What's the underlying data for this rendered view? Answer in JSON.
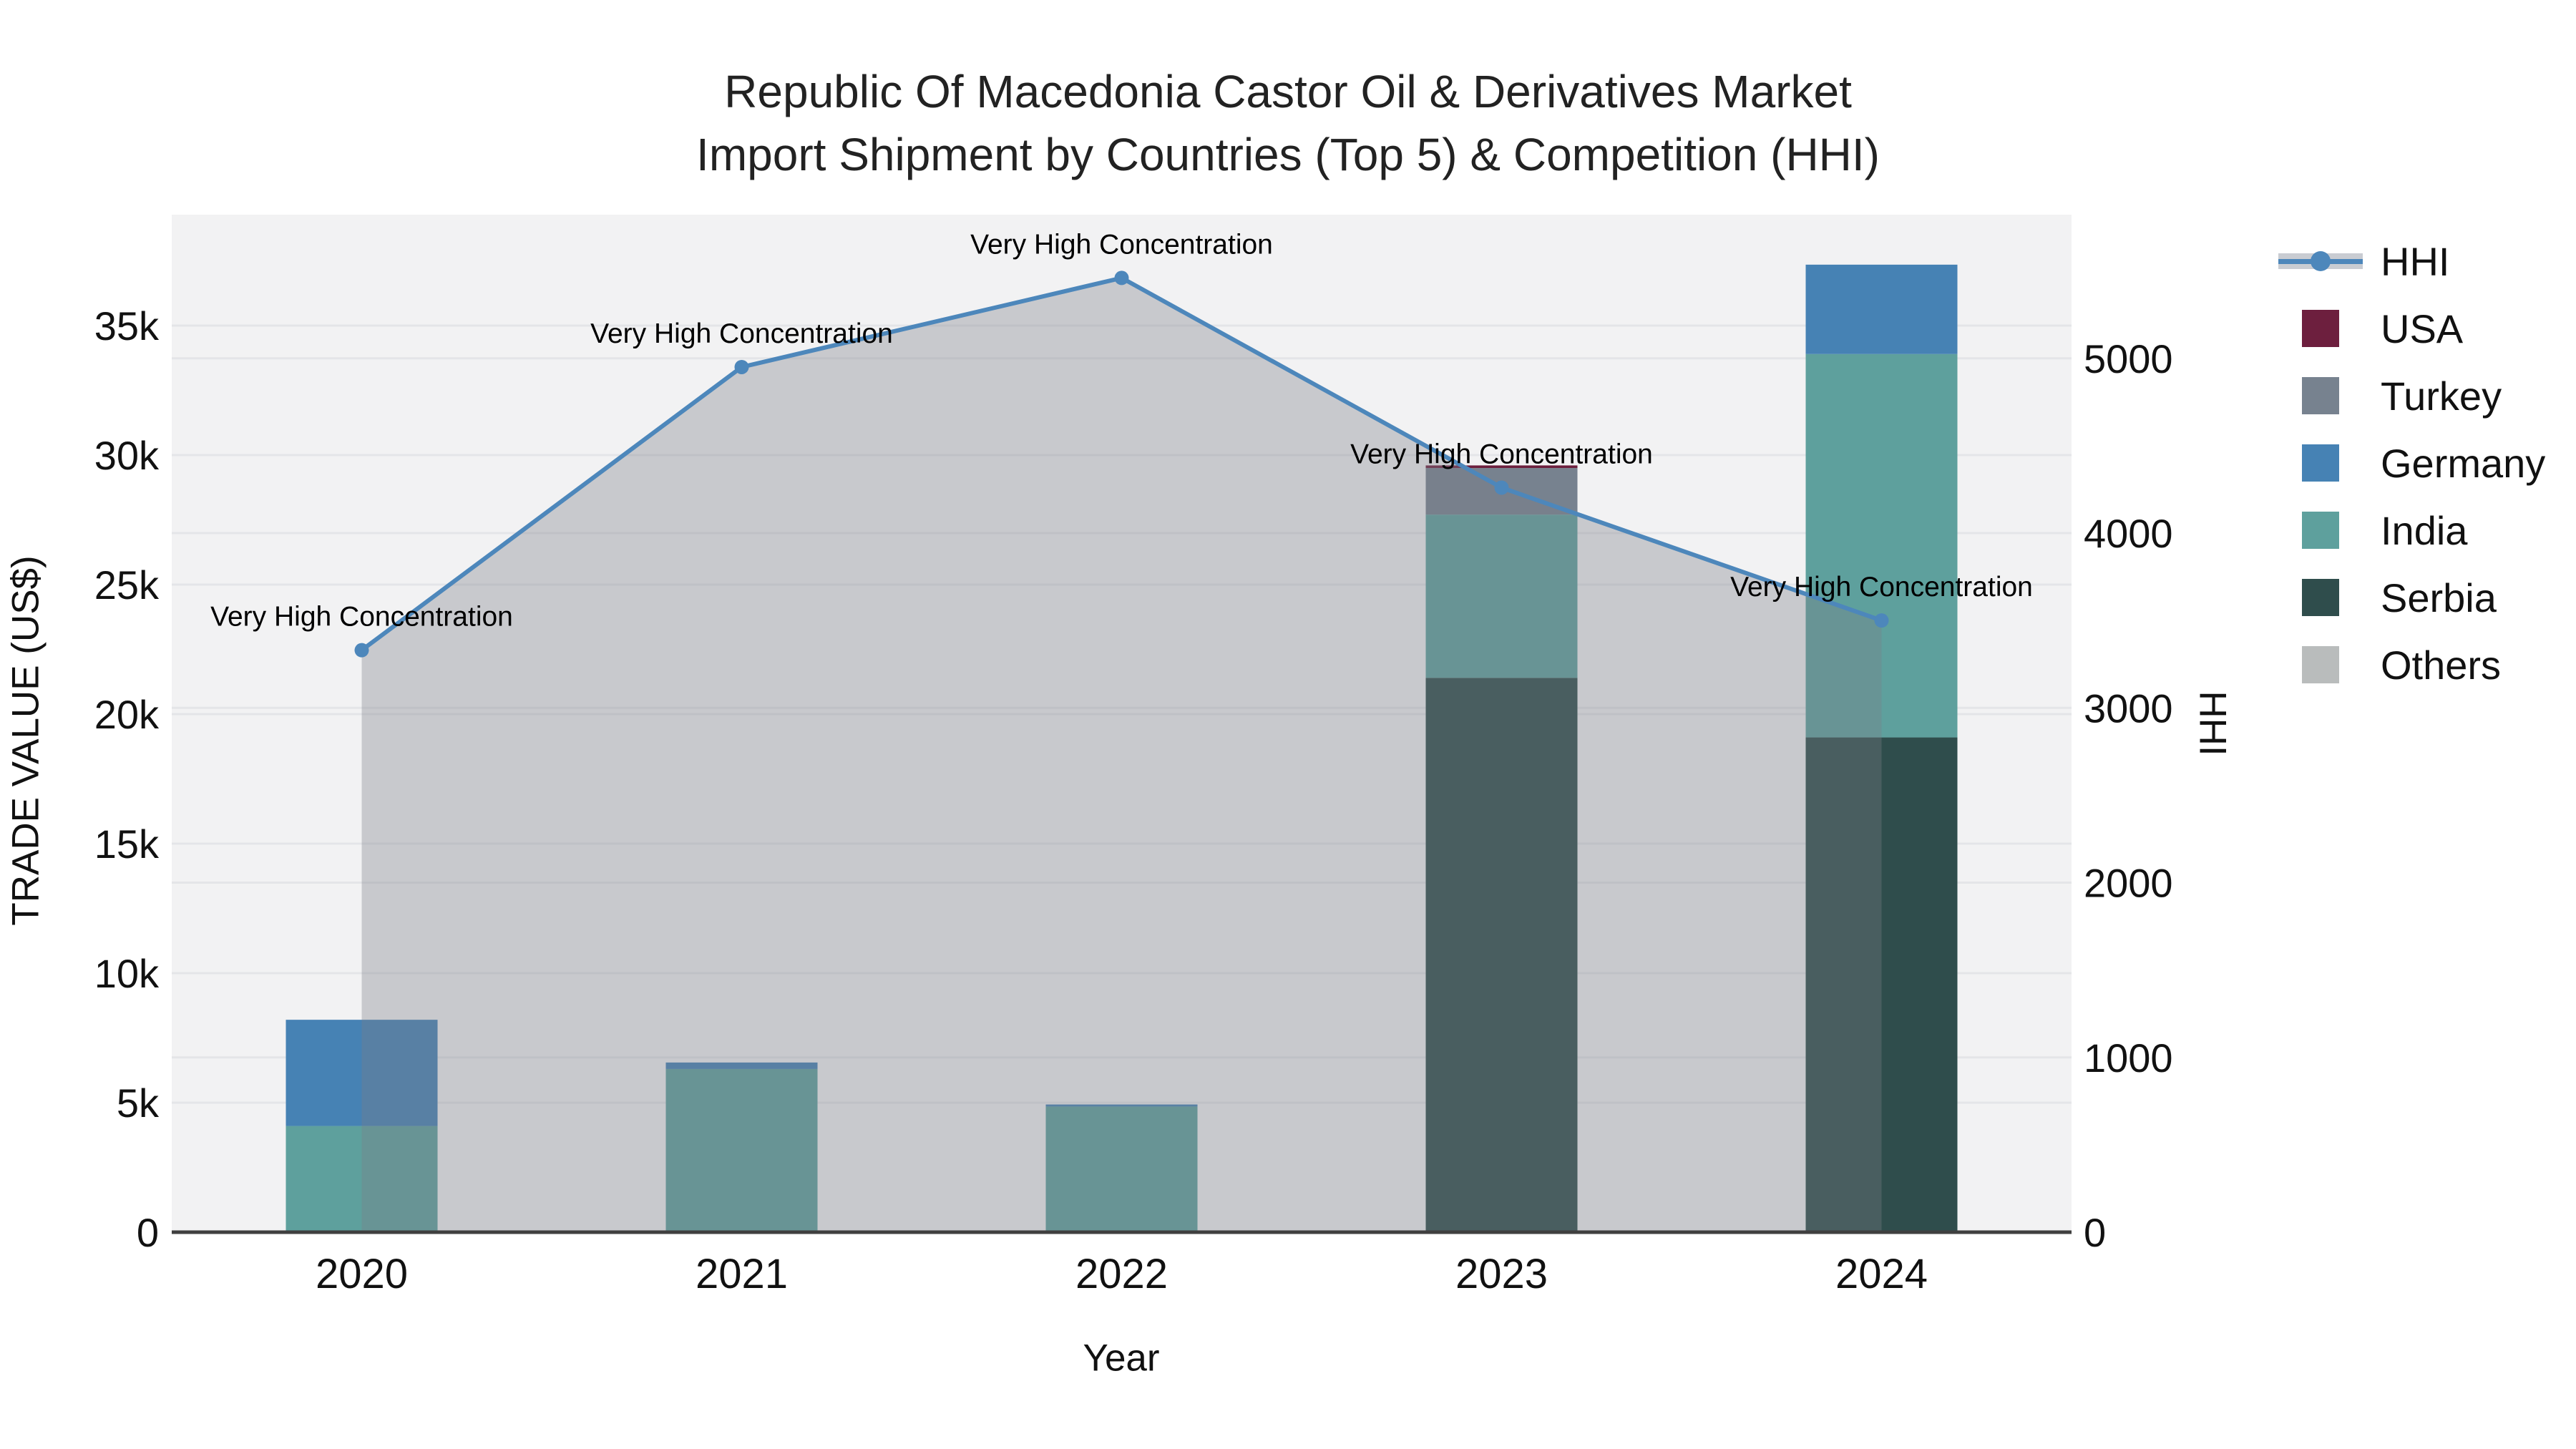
{
  "title": {
    "line1": "Republic Of Macedonia Castor Oil & Derivatives Market",
    "line2": "Import Shipment by Countries (Top 5) & Competition (HHI)"
  },
  "axes": {
    "x_title": "Year",
    "y_left_title": "TRADE VALUE (US$)",
    "y_right_title": "HHI",
    "y_left_ticks": [
      {
        "label": "0",
        "value": 0
      },
      {
        "label": "5k",
        "value": 5000
      },
      {
        "label": "10k",
        "value": 10000
      },
      {
        "label": "15k",
        "value": 15000
      },
      {
        "label": "20k",
        "value": 20000
      },
      {
        "label": "25k",
        "value": 25000
      },
      {
        "label": "30k",
        "value": 30000
      },
      {
        "label": "35k",
        "value": 35000
      }
    ],
    "y_right_ticks": [
      {
        "label": "0",
        "value": 0
      },
      {
        "label": "1000",
        "value": 1000
      },
      {
        "label": "2000",
        "value": 2000
      },
      {
        "label": "3000",
        "value": 3000
      },
      {
        "label": "4000",
        "value": 4000
      },
      {
        "label": "5000",
        "value": 5000
      }
    ]
  },
  "legend": {
    "items": [
      {
        "label": "HHI",
        "type": "line",
        "color": "#4d87bb"
      },
      {
        "label": "USA",
        "type": "square",
        "color": "#6d1f3e"
      },
      {
        "label": "Turkey",
        "type": "square",
        "color": "#77828f"
      },
      {
        "label": "Germany",
        "type": "square",
        "color": "#4682b4"
      },
      {
        "label": "India",
        "type": "square",
        "color": "#5ea09d"
      },
      {
        "label": "Serbia",
        "type": "square",
        "color": "#2f4d4c"
      },
      {
        "label": "Others",
        "type": "square",
        "color": "#b9bcbc"
      }
    ]
  },
  "annotation_text": "Very High Concentration",
  "colors": {
    "plot_bg": "#f2f2f3",
    "grid": "#e4e5e8",
    "zero_line": "#3f3f3f",
    "hhi_line": "#4d87bb",
    "hhi_fill": "rgba(122,126,136,0.35)"
  },
  "chart_data": {
    "type": "bar",
    "subtype": "stacked bars with secondary-axis line (HHI, filled to zero)",
    "categories": [
      "2020",
      "2021",
      "2022",
      "2023",
      "2024"
    ],
    "series": [
      {
        "name": "USA",
        "type": "bar",
        "color": "#6d1f3e",
        "values": [
          0,
          0,
          0,
          100,
          0
        ]
      },
      {
        "name": "Turkey",
        "type": "bar",
        "color": "#77828f",
        "values": [
          0,
          0,
          0,
          1800,
          0
        ]
      },
      {
        "name": "Germany",
        "type": "bar",
        "color": "#4682b4",
        "values": [
          4100,
          250,
          80,
          0,
          3450
        ]
      },
      {
        "name": "India",
        "type": "bar",
        "color": "#5ea09d",
        "values": [
          4100,
          6300,
          4850,
          6300,
          14800
        ]
      },
      {
        "name": "Serbia",
        "type": "bar",
        "color": "#2f4d4c",
        "values": [
          0,
          0,
          0,
          21400,
          19100
        ]
      },
      {
        "name": "Others",
        "type": "bar",
        "color": "#b9bcbc",
        "values": [
          0,
          0,
          0,
          0,
          0
        ]
      },
      {
        "name": "HHI",
        "type": "line",
        "axis": "right",
        "color": "#4d87bb",
        "fill": "rgba(122,126,136,0.35)",
        "values": [
          3330,
          4950,
          5460,
          4260,
          3500
        ]
      }
    ],
    "stack_order_bottom_to_top": [
      "Serbia",
      "India",
      "Germany",
      "Turkey",
      "USA",
      "Others"
    ],
    "annotations": [
      {
        "x": "2020",
        "text": "Very High Concentration"
      },
      {
        "x": "2021",
        "text": "Very High Concentration"
      },
      {
        "x": "2022",
        "text": "Very High Concentration"
      },
      {
        "x": "2023",
        "text": "Very High Concentration"
      },
      {
        "x": "2024",
        "text": "Very High Concentration"
      }
    ],
    "title": "Republic Of Macedonia Castor Oil & Derivatives Market Import Shipment by Countries (Top 5) & Competition (HHI)",
    "xlabel": "Year",
    "ylabel": "TRADE VALUE (US$)",
    "y2label": "HHI",
    "ylim": [
      0,
      39280
    ],
    "y2lim": [
      0,
      5822
    ],
    "grid": "horizontal gridlines for both y axes",
    "legend_position": "right"
  }
}
